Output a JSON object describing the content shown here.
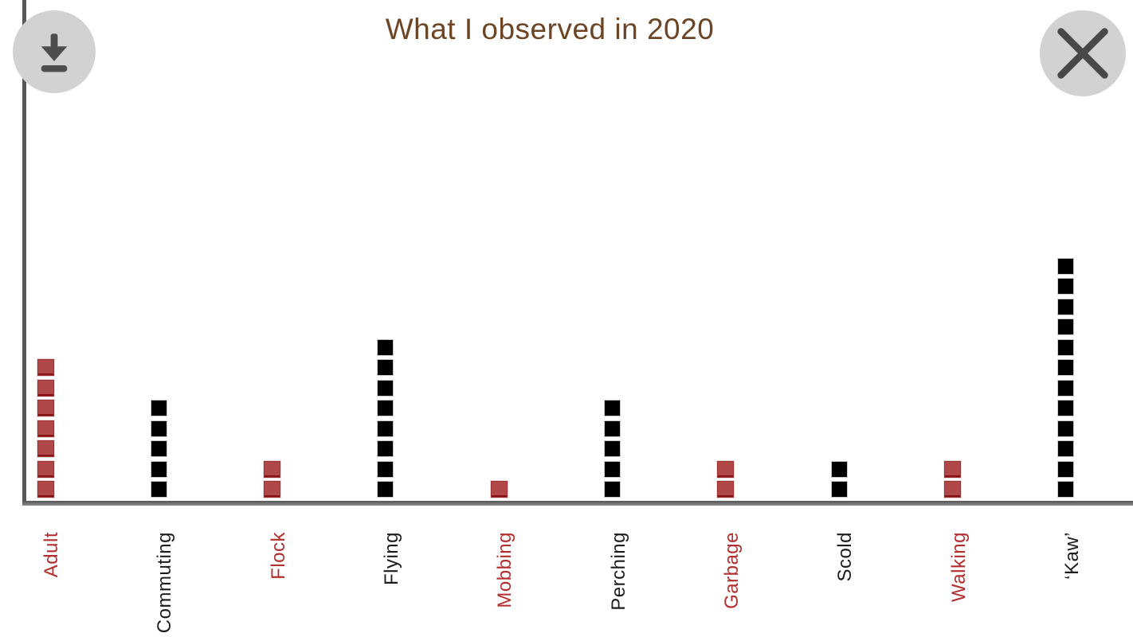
{
  "title": "What I observed in 2020",
  "toolbar": {
    "download_icon": "download-icon",
    "close_icon": "close-icon"
  },
  "colors": {
    "title": "#6b4525",
    "axis": "#57575a",
    "button_circle": "#d2d2d2",
    "button_glyph": "#4d4d4f",
    "square_red_fill": "#b04848",
    "square_red_edge": "#871414",
    "square_black_fill": "#000000",
    "square_border_light": "#c9c9c9",
    "label_red": "#b32e2e",
    "label_black": "#1c1c1c"
  },
  "chart_data": {
    "type": "bar",
    "subtype": "square-pictogram-stacks",
    "title": "What I observed in 2020",
    "xlabel": "",
    "ylabel": "",
    "categories": [
      "Adult",
      "Commuting",
      "Flock",
      "Flying",
      "Mobbing",
      "Perching",
      "Garbage",
      "Scold",
      "Walking",
      "‘Kaw’"
    ],
    "values": [
      7,
      5,
      2,
      8,
      1,
      5,
      2,
      2,
      2,
      12
    ],
    "series_colors": [
      "red",
      "black",
      "red",
      "black",
      "red",
      "black",
      "red",
      "black",
      "red",
      "black"
    ],
    "ylim": [
      0,
      12
    ],
    "unit_per_square": 1,
    "grid": false,
    "legend": false,
    "x_tick_label_rotation_deg": -90
  }
}
